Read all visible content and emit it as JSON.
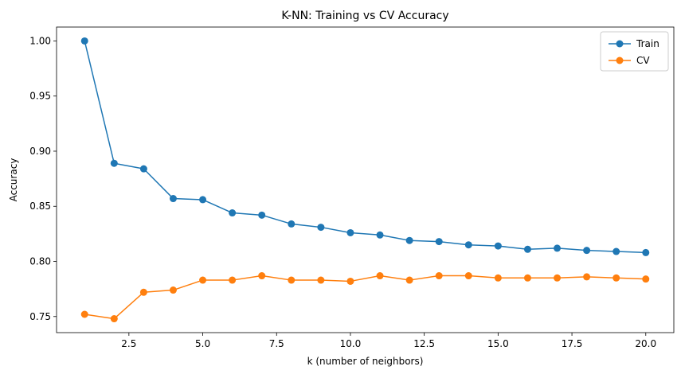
{
  "chart_data": {
    "type": "line",
    "title": "K-NN: Training vs CV Accuracy",
    "xlabel": "k (number of neighbors)",
    "ylabel": "Accuracy",
    "xlim": [
      0.05,
      20.95
    ],
    "ylim": [
      0.7354,
      1.0126
    ],
    "x_ticks": [
      2.5,
      5.0,
      7.5,
      10.0,
      12.5,
      15.0,
      17.5,
      20.0
    ],
    "x_tick_labels": [
      "2.5",
      "5.0",
      "7.5",
      "10.0",
      "12.5",
      "15.0",
      "17.5",
      "20.0"
    ],
    "y_ticks": [
      0.75,
      0.8,
      0.85,
      0.9,
      0.95,
      1.0
    ],
    "y_tick_labels": [
      "0.75",
      "0.80",
      "0.85",
      "0.90",
      "0.95",
      "1.00"
    ],
    "grid": false,
    "legend_position": "top-right",
    "x": [
      1,
      2,
      3,
      4,
      5,
      6,
      7,
      8,
      9,
      10,
      11,
      12,
      13,
      14,
      15,
      16,
      17,
      18,
      19,
      20
    ],
    "series": [
      {
        "name": "Train",
        "color": "#1f77b4",
        "marker": "circle",
        "values": [
          1.0,
          0.889,
          0.884,
          0.857,
          0.856,
          0.844,
          0.842,
          0.834,
          0.831,
          0.826,
          0.824,
          0.819,
          0.818,
          0.815,
          0.814,
          0.811,
          0.812,
          0.81,
          0.809,
          0.808
        ]
      },
      {
        "name": "CV",
        "color": "#ff7f0e",
        "marker": "circle",
        "values": [
          0.752,
          0.748,
          0.772,
          0.774,
          0.783,
          0.783,
          0.787,
          0.783,
          0.783,
          0.782,
          0.787,
          0.783,
          0.787,
          0.787,
          0.785,
          0.785,
          0.785,
          0.786,
          0.785,
          0.784
        ]
      }
    ]
  }
}
